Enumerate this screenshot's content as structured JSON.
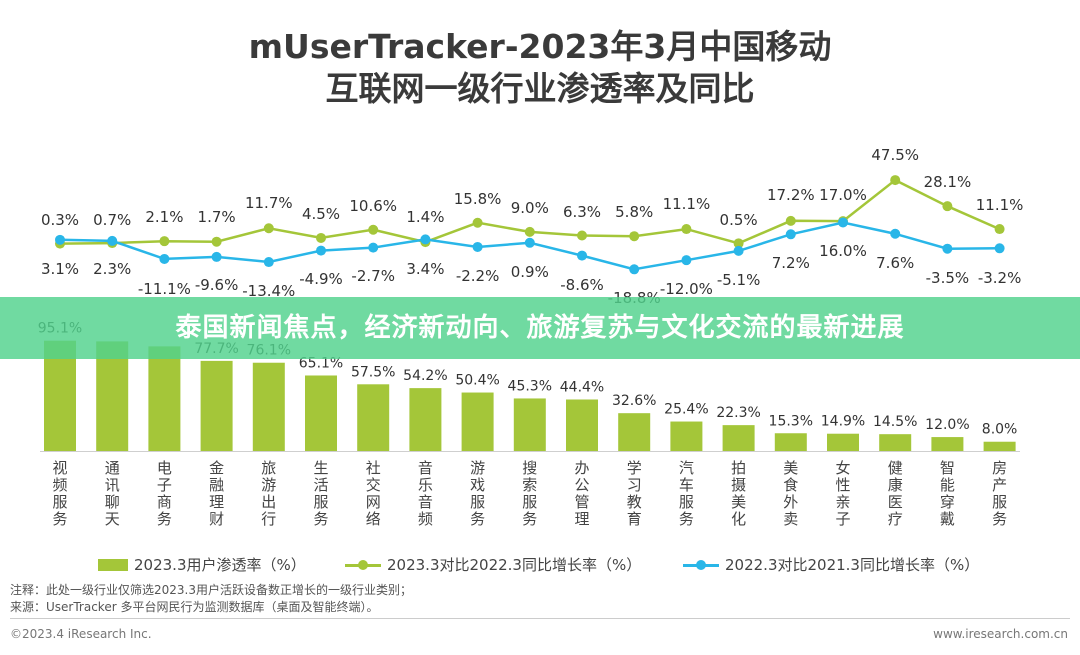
{
  "chart_data": {
    "type": "bar",
    "title_line1": "mUserTracker-2023年3月中国移动",
    "title_line2": "互联网一级行业渗透率及同比",
    "categories": [
      "视频服务",
      "通讯聊天",
      "电子商务",
      "金融理财",
      "旅游出行",
      "生活服务",
      "社交网络",
      "音乐音频",
      "游戏服务",
      "搜索服务",
      "办公管理",
      "学习教育",
      "汽车服务",
      "拍摄美化",
      "美食外卖",
      "女性亲子",
      "健康医疗",
      "智能穿戴",
      "房产服务"
    ],
    "series": [
      {
        "name": "2023.3用户渗透率（%）",
        "values": [
          95.1,
          94.5,
          90.2,
          77.7,
          76.1,
          65.1,
          57.5,
          54.2,
          50.4,
          45.3,
          44.4,
          32.6,
          25.4,
          22.3,
          15.3,
          14.9,
          14.5,
          12.0,
          8.0
        ],
        "labels": [
          "95.1%",
          "",
          "",
          "77.7%",
          "76.1%",
          "65.1%",
          "57.5%",
          "54.2%",
          "50.4%",
          "45.3%",
          "44.4%",
          "32.6%",
          "25.4%",
          "22.3%",
          "15.3%",
          "14.9%",
          "14.5%",
          "12.0%",
          "8.0%"
        ],
        "color": "#a4c639"
      },
      {
        "name": "2023.3对比2022.3同比增长率（%）",
        "values": [
          0.3,
          0.7,
          2.1,
          1.7,
          11.7,
          4.5,
          10.6,
          1.4,
          15.8,
          9.0,
          6.3,
          5.8,
          11.1,
          0.5,
          17.2,
          17.0,
          47.5,
          28.1,
          11.1
        ],
        "labels": [
          "0.3%",
          "0.7%",
          "2.1%",
          "1.7%",
          "11.7%",
          "4.5%",
          "10.6%",
          "1.4%",
          "15.8%",
          "9.0%",
          "6.3%",
          "5.8%",
          "11.1%",
          "0.5%",
          "17.2%",
          "17.0%",
          "47.5%",
          "28.1%",
          "11.1%"
        ],
        "color": "#a4c639"
      },
      {
        "name": "2022.3对比2021.3同比增长率（%）",
        "values": [
          3.1,
          2.3,
          -11.1,
          -9.6,
          -13.4,
          -4.9,
          -2.7,
          3.4,
          -2.2,
          0.9,
          -8.6,
          -18.8,
          -12.0,
          -5.1,
          7.2,
          16.0,
          7.6,
          -3.5,
          -3.2
        ],
        "labels": [
          "3.1%",
          "2.3%",
          "-11.1%",
          "-9.6%",
          "-13.4%",
          "-4.9%",
          "-2.7%",
          "3.4%",
          "-2.2%",
          "0.9%",
          "-8.6%",
          "-18.8%",
          "-12.0%",
          "-5.1%",
          "7.2%",
          "16.0%",
          "7.6%",
          "-3.5%",
          "-3.2%"
        ],
        "color": "#29b6e8"
      }
    ],
    "bar_ylim": [
      0,
      100
    ],
    "line_ylim": [
      -20,
      50
    ]
  },
  "banner": {
    "text": "泰国新闻焦点，经济新动向、旅游复苏与文化交流的最新进展"
  },
  "notes": {
    "line1": "注释：此处一级行业仅筛选2023.3用户活跃设备数正增长的一级行业类别；",
    "line2": "来源：UserTracker 多平台网民行为监测数据库（桌面及智能终端）。"
  },
  "footer": {
    "copyright": "©2023.4 iResearch Inc.",
    "site": "www.iresearch.com.cn"
  }
}
